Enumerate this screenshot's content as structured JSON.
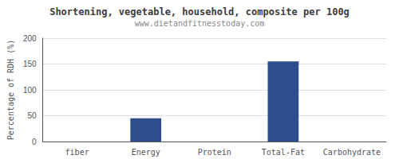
{
  "chart_data": {
    "type": "bar",
    "title": "Shortening, vegetable, household, composite per 100g",
    "subtitle": "www.dietandfitnesstoday.com",
    "categories": [
      "fiber",
      "Energy",
      "Protein",
      "Total-Fat",
      "Carbohydrate"
    ],
    "values": [
      0,
      45,
      0,
      155,
      0
    ],
    "color": "#2d4d8e",
    "ylabel": "Percentage of RDH (%)",
    "ylim": [
      0,
      200
    ],
    "yticks": [
      0,
      50,
      100,
      150,
      200
    ],
    "grid": true
  }
}
